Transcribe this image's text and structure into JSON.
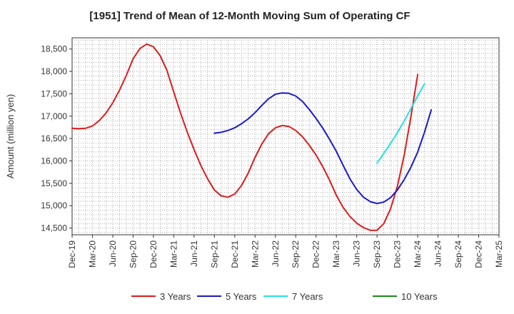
{
  "chart_data": {
    "type": "line",
    "title": "[1951]  Trend of Mean of 12-Month Moving Sum of Operating CF",
    "xlabel": "",
    "ylabel": "Amount (million yen)",
    "ylim": [
      14350,
      18750
    ],
    "yticks": [
      14500,
      15000,
      15500,
      16000,
      16500,
      17000,
      17500,
      18000,
      18500
    ],
    "ytick_labels": [
      "14,500",
      "15,000",
      "15,500",
      "16,000",
      "16,500",
      "17,000",
      "17,500",
      "18,000",
      "18,500"
    ],
    "xtick_labels": [
      "Dec-19",
      "Mar-20",
      "Jun-20",
      "Sep-20",
      "Dec-20",
      "Mar-21",
      "Jun-21",
      "Sep-21",
      "Dec-21",
      "Mar-22",
      "Jun-22",
      "Sep-22",
      "Dec-22",
      "Mar-23",
      "Jun-23",
      "Sep-23",
      "Dec-23",
      "Mar-24",
      "Jun-24",
      "Sep-24",
      "Dec-24",
      "Mar-25"
    ],
    "grid": true,
    "legend_position": "bottom",
    "series": [
      {
        "name": "3 Years",
        "color": "#dd1c1c",
        "start_index": 0,
        "values": [
          16730,
          16720,
          16730,
          16780,
          16900,
          17070,
          17300,
          17580,
          17910,
          18280,
          18510,
          18610,
          18550,
          18350,
          18020,
          17540,
          17070,
          16640,
          16250,
          15900,
          15600,
          15350,
          15220,
          15190,
          15260,
          15450,
          15730,
          16080,
          16380,
          16610,
          16740,
          16790,
          16770,
          16680,
          16540,
          16350,
          16130,
          15870,
          15570,
          15230,
          14960,
          14760,
          14610,
          14510,
          14450,
          14450,
          14600,
          14930,
          15430,
          16120,
          16990,
          17930
        ]
      },
      {
        "name": "5 Years",
        "color": "#1a1acc",
        "start_index": 21,
        "values": [
          16620,
          16640,
          16680,
          16740,
          16830,
          16940,
          17080,
          17240,
          17390,
          17490,
          17520,
          17510,
          17450,
          17330,
          17150,
          16950,
          16730,
          16480,
          16210,
          15900,
          15600,
          15360,
          15190,
          15090,
          15050,
          15080,
          15180,
          15350,
          15580,
          15860,
          16200,
          16640,
          17140
        ]
      },
      {
        "name": "7 Years",
        "color": "#22e0e8",
        "start_index": 45,
        "values": [
          15950,
          16170,
          16390,
          16630,
          16890,
          17170,
          17450,
          17720
        ]
      },
      {
        "name": "10 Years",
        "color": "#1a8a1a",
        "start_index": 0,
        "values": []
      }
    ]
  }
}
